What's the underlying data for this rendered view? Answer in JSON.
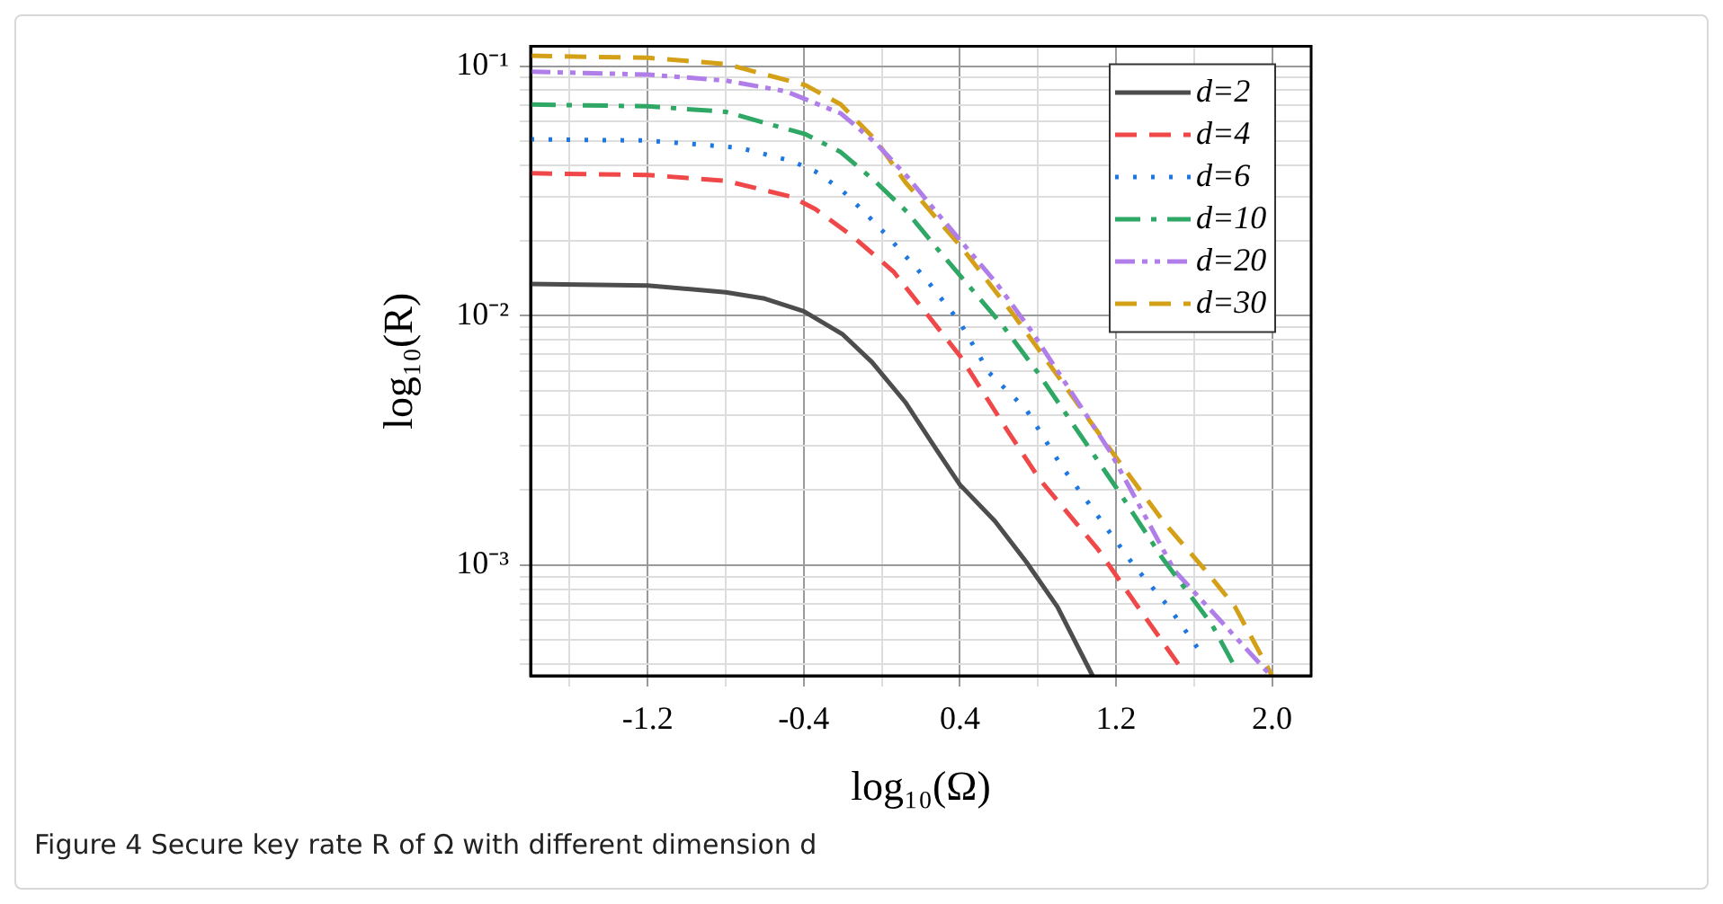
{
  "chart_data": {
    "type": "line",
    "xlabel": "log₁₀(Ω)",
    "ylabel": "log₁₀(R)",
    "log": "y",
    "grid": true,
    "legend": "top right",
    "marker": "none",
    "xlim": [
      -1.8,
      2.2
    ],
    "xticks": [
      {
        "value": -1.6,
        "label": null
      },
      -1.2,
      {
        "value": -0.8,
        "label": null
      },
      -0.4,
      {
        "value": 0,
        "label": null
      },
      0.4,
      {
        "value": 0.8,
        "label": null
      },
      1.2,
      {
        "value": 1.6,
        "label": null
      },
      {
        "value": 2,
        "label": "2.0"
      }
    ],
    "ylim": [
      0.00036,
      0.12
    ],
    "yticks": [
      {
        "value": 0.0004,
        "label": null
      },
      {
        "value": 0.0005,
        "label": null
      },
      {
        "value": 0.0006,
        "label": null
      },
      {
        "value": 0.0007,
        "label": null
      },
      {
        "value": 0.0008,
        "label": null
      },
      {
        "value": 0.0009,
        "label": null
      },
      {
        "value": 0.001,
        "label": "10⁻³"
      },
      {
        "value": 0.002,
        "label": null
      },
      {
        "value": 0.003,
        "label": null
      },
      {
        "value": 0.004,
        "label": null
      },
      {
        "value": 0.005,
        "label": null
      },
      {
        "value": 0.006,
        "label": null
      },
      {
        "value": 0.007,
        "label": null
      },
      {
        "value": 0.008,
        "label": null
      },
      {
        "value": 0.009,
        "label": null
      },
      {
        "value": 0.01,
        "label": "10⁻²"
      },
      {
        "value": 0.02,
        "label": null
      },
      {
        "value": 0.03,
        "label": null
      },
      {
        "value": 0.04,
        "label": null
      },
      {
        "value": 0.05,
        "label": null
      },
      {
        "value": 0.06,
        "label": null
      },
      {
        "value": 0.07,
        "label": null
      },
      {
        "value": 0.08,
        "label": null
      },
      {
        "value": 0.09,
        "label": null
      },
      {
        "value": 0.1,
        "label": "10⁻¹"
      }
    ],
    "annotations": [
      "Figure 4  Secure key rate R of Ω with different dimension d"
    ],
    "series": [
      {
        "name": "d=2",
        "color": "#4d4d4d",
        "line_style": "solid",
        "x": [
          -1.8,
          -1.2,
          -0.8,
          -0.6,
          -0.4,
          -0.2,
          -0.05,
          0.12,
          0.28,
          0.4,
          0.58,
          0.74,
          0.9,
          1.08
        ],
        "values": [
          0.0134,
          0.0132,
          0.0124,
          0.0117,
          0.0104,
          0.0084,
          0.0065,
          0.0045,
          0.0029,
          0.0021,
          0.0015,
          0.00103,
          0.00068,
          0.00036
        ]
      },
      {
        "name": "d=4",
        "color": "#f04848",
        "line_style": "dashed",
        "x": [
          -1.8,
          -1.2,
          -0.8,
          -0.46,
          -0.34,
          -0.15,
          0.06,
          0.22,
          0.4,
          0.65,
          0.81,
          1.11,
          1.29,
          1.54
        ],
        "values": [
          0.0372,
          0.0366,
          0.0347,
          0.0299,
          0.0267,
          0.0208,
          0.015,
          0.0104,
          0.0069,
          0.0034,
          0.0022,
          0.00115,
          0.00072,
          0.00038
        ]
      },
      {
        "name": "d=6",
        "color": "#1f78e0",
        "line_style": "dotted",
        "x": [
          -1.8,
          -1.2,
          -0.73,
          -0.46,
          -0.34,
          -0.21,
          -0.09,
          0.03,
          0.22,
          0.4,
          0.55,
          0.74,
          0.92,
          1.09,
          1.29,
          1.47,
          1.64
        ],
        "values": [
          0.0509,
          0.0503,
          0.0471,
          0.0416,
          0.0378,
          0.0321,
          0.026,
          0.0208,
          0.0142,
          0.0094,
          0.0059,
          0.0042,
          0.0025,
          0.00164,
          0.001,
          0.00068,
          0.00044
        ]
      },
      {
        "name": "d=10",
        "color": "#2fa866",
        "line_style": "dashdot",
        "x": [
          -1.8,
          -1.2,
          -0.8,
          -0.52,
          -0.39,
          -0.21,
          -0.03,
          0.13,
          0.28,
          0.41,
          0.62,
          0.8,
          1.2,
          1.44,
          1.69,
          1.81
        ],
        "values": [
          0.0702,
          0.069,
          0.0656,
          0.0569,
          0.0533,
          0.0452,
          0.0343,
          0.026,
          0.0187,
          0.0142,
          0.0091,
          0.0059,
          0.00205,
          0.00106,
          0.00058,
          0.00039
        ]
      },
      {
        "name": "d=20",
        "color": "#b07ee8",
        "line_style": "dashdotdot",
        "x": [
          -1.8,
          -1.2,
          -0.8,
          -0.49,
          -0.21,
          -0.03,
          0.13,
          0.28,
          0.41,
          0.59,
          0.77,
          1.17,
          1.5,
          1.98
        ],
        "values": [
          0.095,
          0.0925,
          0.0875,
          0.0792,
          0.0646,
          0.0491,
          0.0361,
          0.026,
          0.0197,
          0.0134,
          0.0086,
          0.00285,
          0.00095,
          0.00037
        ]
      },
      {
        "name": "d=30",
        "color": "#d4a017",
        "line_style": "dashed",
        "x": [
          -1.8,
          -1.2,
          -0.8,
          -0.39,
          -0.21,
          -0.03,
          0.12,
          0.41,
          0.67,
          0.89,
          1.2,
          1.45,
          1.66,
          1.81,
          2.0
        ],
        "values": [
          0.11,
          0.108,
          0.102,
          0.0838,
          0.0702,
          0.0504,
          0.0343,
          0.0187,
          0.0102,
          0.0059,
          0.0027,
          0.00147,
          0.00095,
          0.00068,
          0.00036
        ]
      }
    ]
  }
}
